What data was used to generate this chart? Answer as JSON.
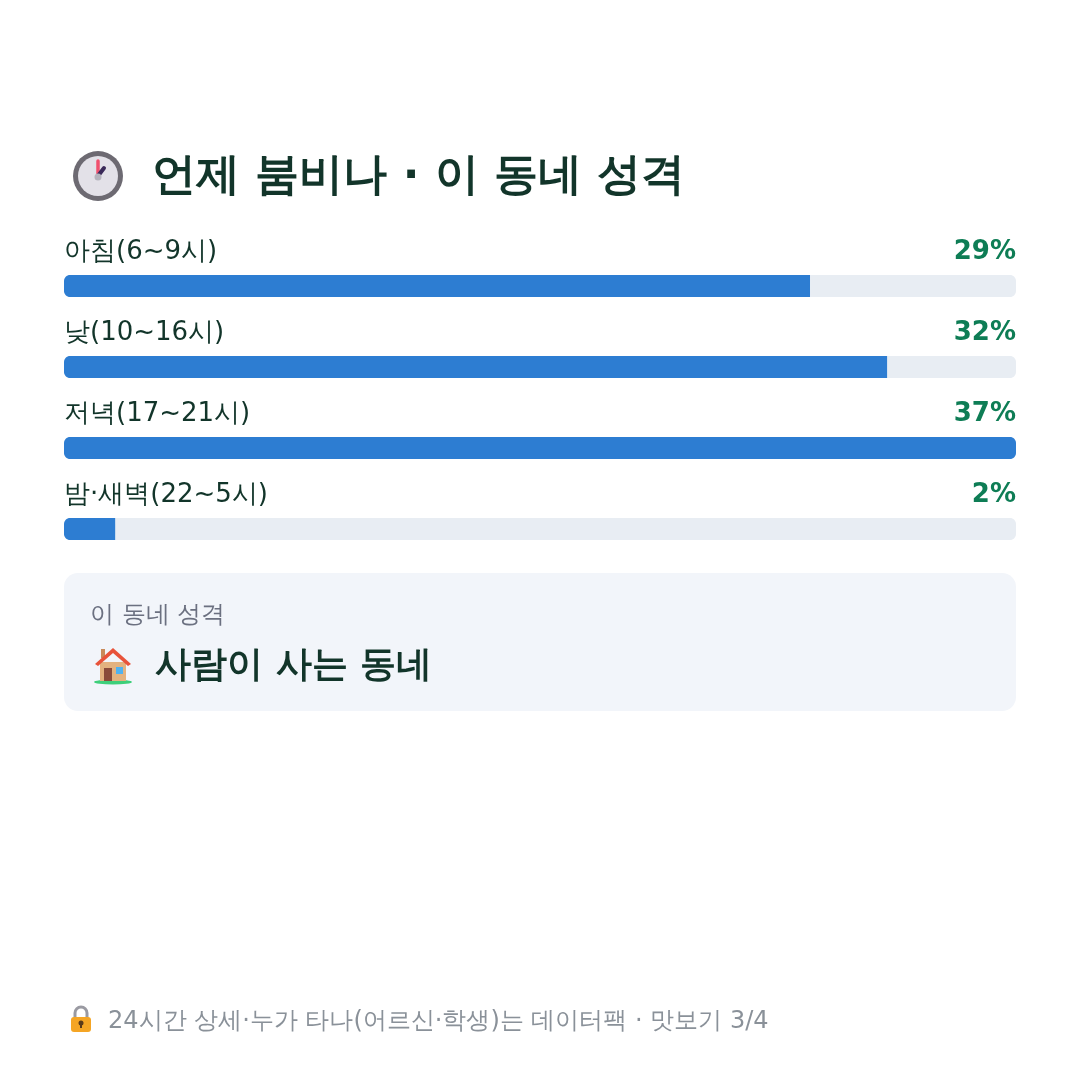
{
  "chart_data": {
    "type": "bar",
    "orientation": "horizontal",
    "title": "언제 붐비나 · 이 동네 성격",
    "categories": [
      "아침(6~9시)",
      "낮(10~16시)",
      "저녁(17~21시)",
      "밤·새벽(22~5시)"
    ],
    "values": [
      29,
      32,
      37,
      2
    ],
    "value_labels": [
      "29%",
      "32%",
      "37%",
      "2%"
    ],
    "color": "#2d7dd2",
    "annotations": [
      "이 동네 성격",
      "사람이 사는 동네",
      "24시간 상세·누가 타나(어르신·학생)는 데이터팩 · 맛보기 3/4"
    ]
  }
}
